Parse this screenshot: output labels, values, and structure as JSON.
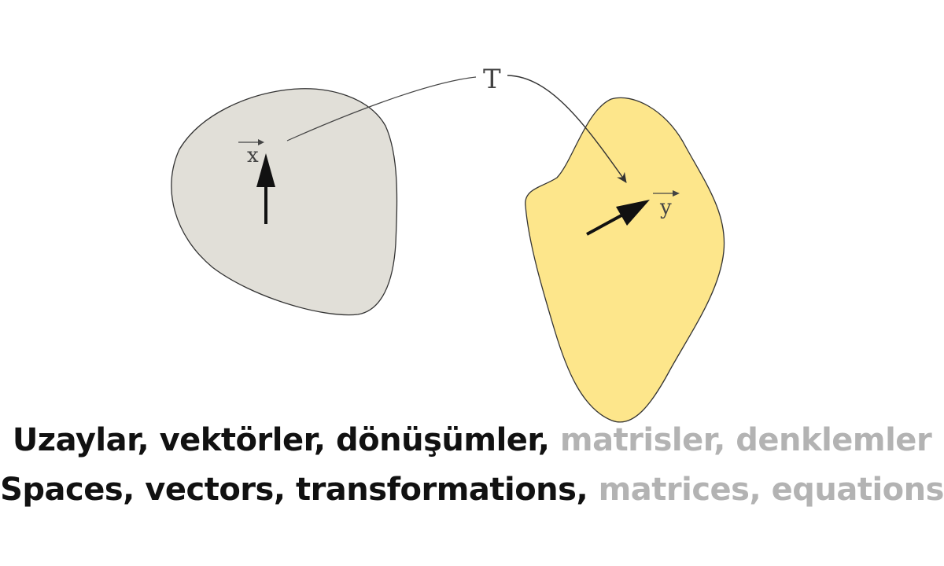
{
  "diagram": {
    "domain_vector_label": "x",
    "codomain_vector_label": "y",
    "transformation_label": "T",
    "colors": {
      "domain_fill": "#e1dfd8",
      "codomain_fill": "#fde68b",
      "outline": "#333333",
      "arrow": "#111111"
    }
  },
  "captions": {
    "turkish": {
      "dark_text": "Uzaylar, vektörler, dönüşümler,",
      "light_text": "matrisler, denklemler"
    },
    "english": {
      "dark_text": "Spaces, vectors, transformations,",
      "light_text": "matrices, equations"
    },
    "colors": {
      "dark": "#111111",
      "light": "#b3b3b3"
    }
  }
}
